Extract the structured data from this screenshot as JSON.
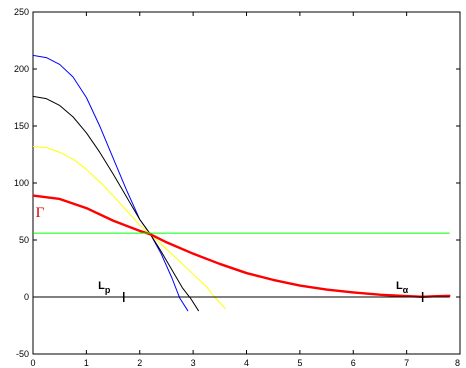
{
  "chart_data": {
    "type": "line",
    "xlim": [
      0,
      8
    ],
    "ylim": [
      -50,
      250
    ],
    "xticks": [
      "0",
      "1",
      "2",
      "3",
      "4",
      "5",
      "6",
      "7",
      "8"
    ],
    "yticks": [
      "-50",
      "0",
      "50",
      "100",
      "150",
      "200",
      "250"
    ],
    "grid": false,
    "series": [
      {
        "color": "#0000ff",
        "lineWidth": 1,
        "points": [
          [
            0,
            212
          ],
          [
            0.25,
            210
          ],
          [
            0.5,
            204
          ],
          [
            0.75,
            193
          ],
          [
            1.0,
            175
          ],
          [
            1.25,
            150
          ],
          [
            1.5,
            122
          ],
          [
            1.75,
            94
          ],
          [
            2.0,
            68
          ],
          [
            2.2,
            55
          ],
          [
            2.4,
            38
          ],
          [
            2.6,
            17
          ],
          [
            2.75,
            -1
          ],
          [
            2.9,
            -12
          ]
        ]
      },
      {
        "color": "#000000",
        "lineWidth": 1,
        "points": [
          [
            0,
            176
          ],
          [
            0.25,
            174
          ],
          [
            0.5,
            168
          ],
          [
            0.75,
            158
          ],
          [
            1.0,
            144
          ],
          [
            1.25,
            127
          ],
          [
            1.5,
            108
          ],
          [
            1.75,
            88
          ],
          [
            2.0,
            68
          ],
          [
            2.2,
            55
          ],
          [
            2.4,
            40
          ],
          [
            2.6,
            24
          ],
          [
            2.8,
            8
          ],
          [
            2.95,
            -1
          ],
          [
            3.1,
            -12
          ]
        ]
      },
      {
        "color": "#ffff00",
        "lineWidth": 1,
        "points": [
          [
            0,
            132
          ],
          [
            0.25,
            131
          ],
          [
            0.5,
            127
          ],
          [
            0.75,
            121
          ],
          [
            1.0,
            112
          ],
          [
            1.25,
            101
          ],
          [
            1.5,
            89
          ],
          [
            1.75,
            76
          ],
          [
            2.0,
            63
          ],
          [
            2.2,
            55
          ],
          [
            2.5,
            42
          ],
          [
            2.8,
            29
          ],
          [
            3.0,
            20
          ],
          [
            3.25,
            9
          ],
          [
            3.4,
            0
          ],
          [
            3.6,
            -10
          ]
        ]
      },
      {
        "color": "#ff0000",
        "lineWidth": 2.4,
        "points": [
          [
            0,
            89
          ],
          [
            0.5,
            86
          ],
          [
            1.0,
            78
          ],
          [
            1.5,
            67
          ],
          [
            2.0,
            58
          ],
          [
            2.2,
            55
          ],
          [
            2.5,
            48
          ],
          [
            3.0,
            38
          ],
          [
            3.5,
            29
          ],
          [
            4.0,
            21
          ],
          [
            4.5,
            15
          ],
          [
            5.0,
            10
          ],
          [
            5.5,
            6.5
          ],
          [
            6.0,
            4
          ],
          [
            6.5,
            2
          ],
          [
            7.0,
            0.8
          ],
          [
            7.3,
            0.2
          ],
          [
            7.5,
            0.6
          ],
          [
            7.8,
            1
          ]
        ]
      },
      {
        "color": "#00ff00",
        "lineWidth": 1,
        "points": [
          [
            0,
            56
          ],
          [
            7.8,
            56
          ]
        ]
      },
      {
        "color": "#000000",
        "lineWidth": 1,
        "points": [
          [
            0,
            0
          ],
          [
            7.8,
            0
          ]
        ]
      }
    ],
    "markers": [
      {
        "x": 1.7,
        "y": 0,
        "color": "#000000"
      },
      {
        "x": 7.3,
        "y": 0,
        "color": "#000000"
      }
    ],
    "annotations": [
      {
        "label": "Γ",
        "x": 0.05,
        "y": 70,
        "color": "#cc0000",
        "style": "gamma"
      },
      {
        "label": "L",
        "sub": "p",
        "x": 1.22,
        "y": 7,
        "color": "#000000",
        "style": "annot"
      },
      {
        "label": "L",
        "sub": "α",
        "x": 6.8,
        "y": 7,
        "color": "#000000",
        "style": "annot"
      }
    ]
  }
}
